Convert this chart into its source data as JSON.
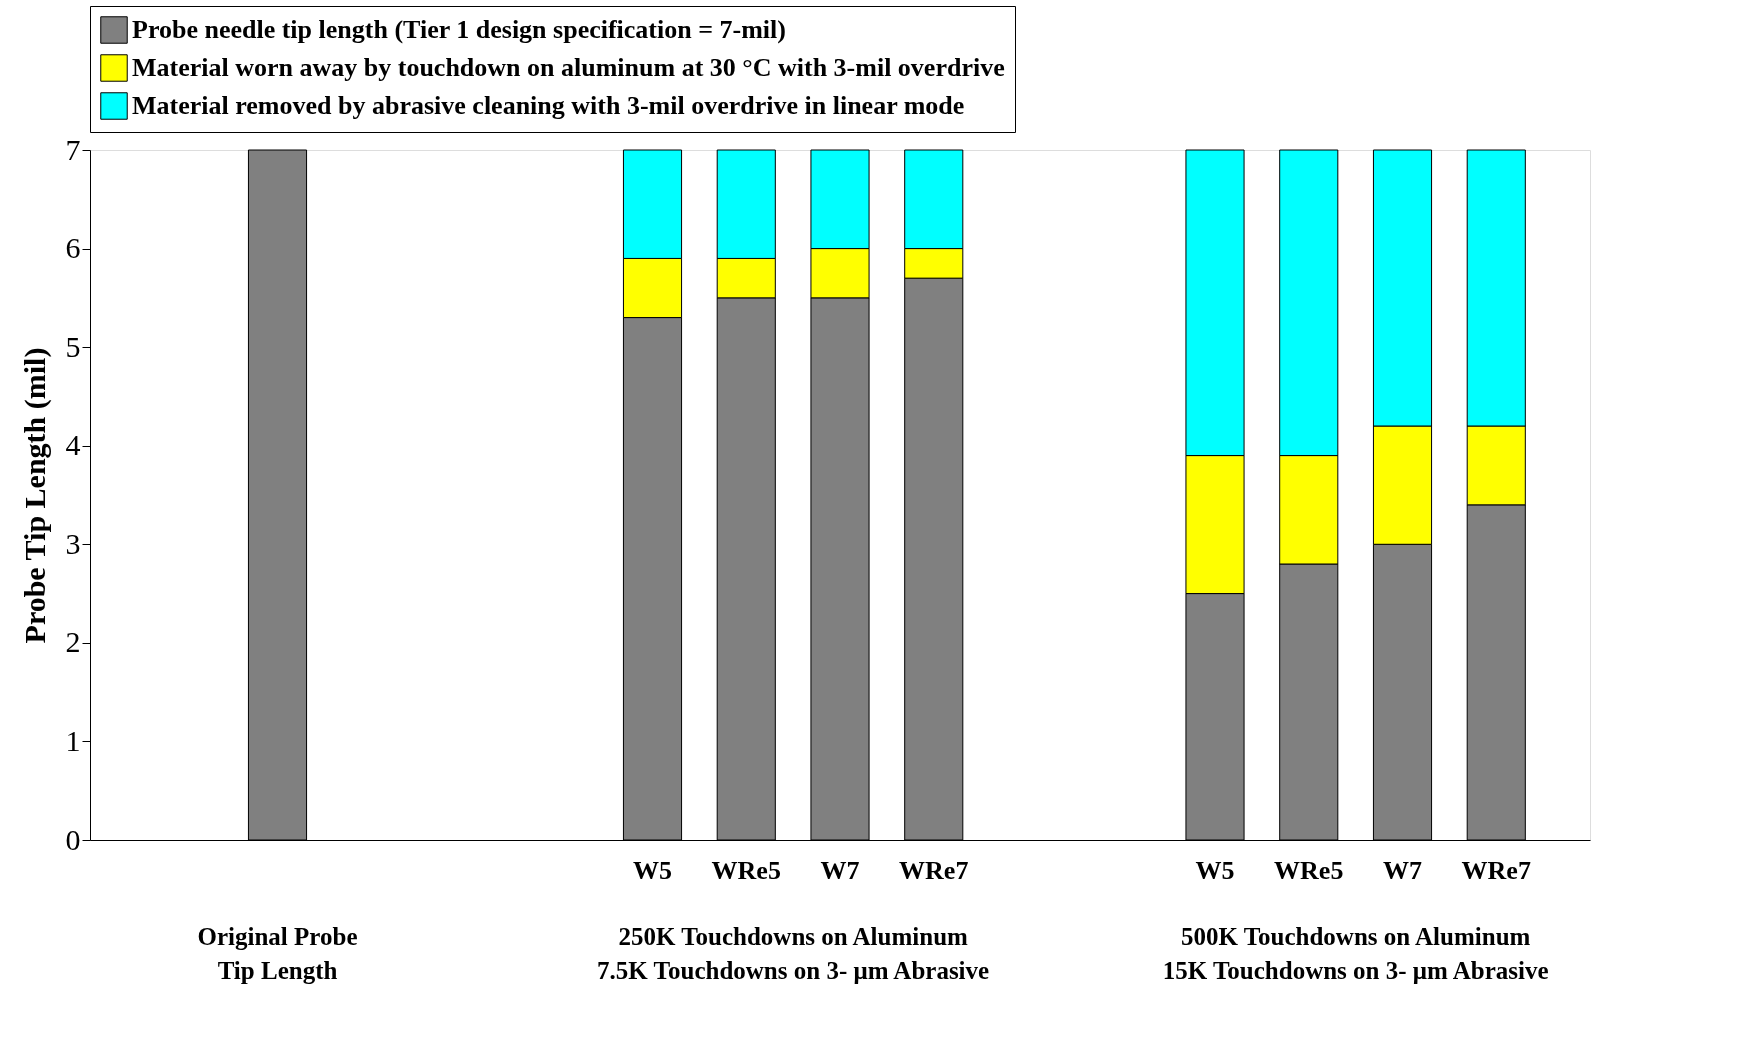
{
  "chart_data": {
    "type": "bar",
    "stacked": true,
    "ylabel": "Probe Tip Length (mil)",
    "ylim": [
      0,
      7
    ],
    "yticks": [
      0,
      1,
      2,
      3,
      4,
      5,
      6,
      7
    ],
    "grid": false,
    "legend": "top",
    "categories": [
      null,
      null,
      null,
      null,
      "W5",
      "WRe5",
      "W7",
      "WRe7",
      null,
      null,
      "W5",
      "WRe5",
      "W7",
      "WRe7"
    ],
    "series": [
      {
        "name": "Probe needle tip length (Tier 1 design specification = 7-mil)",
        "color": "#808080",
        "values": [
          7,
          null,
          null,
          null,
          5.3,
          5.5,
          5.5,
          5.7,
          null,
          null,
          2.5,
          2.8,
          3.0,
          3.4
        ]
      },
      {
        "name": "Material worn away by touchdown on aluminum at 30 °C with 3-mil overdrive",
        "color": "#ffff00",
        "values": [
          null,
          null,
          null,
          null,
          0.6,
          0.4,
          0.5,
          0.3,
          null,
          null,
          1.4,
          1.1,
          1.2,
          0.8
        ]
      },
      {
        "name": "Material removed by abrasive cleaning with 3-mil overdrive in linear mode",
        "color": "#00ffff",
        "values": [
          null,
          null,
          null,
          null,
          1.1,
          1.1,
          1.0,
          1.0,
          null,
          null,
          3.1,
          3.1,
          2.8,
          2.8
        ]
      }
    ],
    "annotations": [
      "Original Probe\nTip Length",
      "250K Touchdowns on Aluminum\n7.5K Touchdowns on 3- μm Abrasive",
      "500K Touchdowns on Aluminum\n15K Touchdowns on 3- μm Abrasive"
    ]
  }
}
